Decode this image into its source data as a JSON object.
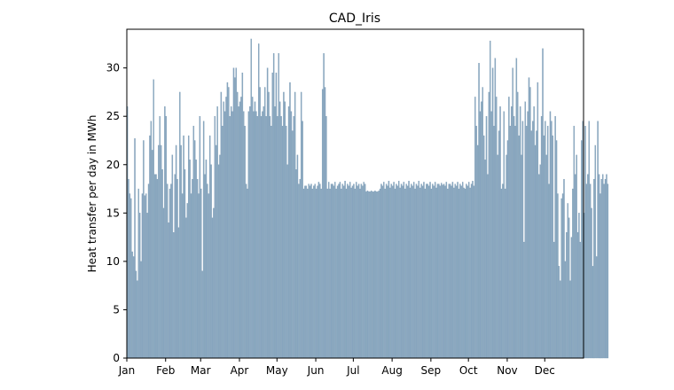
{
  "chart_data": {
    "type": "bar",
    "title": "CAD_Iris",
    "xlabel": "",
    "ylabel": "Heat transfer per day in MWh",
    "ylim": [
      0,
      34
    ],
    "yticks": [
      0,
      5,
      10,
      15,
      20,
      25,
      30
    ],
    "xlim": [
      0,
      365
    ],
    "month_ticks": [
      {
        "label": "Jan",
        "day": 0
      },
      {
        "label": "Feb",
        "day": 31
      },
      {
        "label": "Mar",
        "day": 59
      },
      {
        "label": "Apr",
        "day": 90
      },
      {
        "label": "May",
        "day": 120
      },
      {
        "label": "Jun",
        "day": 151
      },
      {
        "label": "Jul",
        "day": 181
      },
      {
        "label": "Aug",
        "day": 212
      },
      {
        "label": "Sep",
        "day": 243
      },
      {
        "label": "Oct",
        "day": 273
      },
      {
        "label": "Nov",
        "day": 304
      },
      {
        "label": "Dec",
        "day": 334
      }
    ],
    "bar_color": "#8aa8c0",
    "edge_color": "#7898b2",
    "series": [
      {
        "name": "Heat transfer per day",
        "values": [
          26.0,
          18.5,
          17.0,
          16.5,
          11.0,
          10.5,
          22.7,
          9.0,
          8.0,
          17.5,
          15.0,
          10.0,
          17.0,
          22.5,
          16.8,
          17.0,
          15.0,
          18.0,
          23.0,
          24.5,
          21.5,
          28.8,
          19.0,
          19.0,
          18.5,
          22.0,
          25.0,
          22.0,
          19.5,
          15.5,
          26.0,
          25.0,
          18.0,
          14.0,
          17.5,
          18.0,
          21.0,
          13.0,
          19.0,
          22.0,
          18.5,
          13.5,
          27.5,
          22.0,
          17.0,
          23.0,
          19.5,
          14.5,
          16.0,
          23.0,
          20.5,
          17.0,
          18.5,
          24.0,
          22.5,
          20.5,
          18.5,
          17.0,
          25.0,
          17.5,
          9.0,
          24.5,
          19.0,
          20.5,
          18.0,
          17.0,
          23.0,
          20.0,
          14.5,
          15.5,
          25.0,
          22.0,
          26.0,
          20.0,
          21.0,
          27.5,
          24.0,
          26.5,
          25.5,
          27.0,
          28.5,
          28.0,
          25.0,
          26.0,
          25.5,
          30.0,
          29.0,
          30.0,
          27.5,
          26.0,
          26.5,
          27.0,
          29.5,
          25.5,
          24.0,
          18.0,
          17.5,
          25.5,
          26.0,
          33.0,
          27.0,
          25.5,
          26.5,
          25.5,
          25.0,
          32.5,
          28.0,
          25.0,
          25.5,
          26.0,
          28.0,
          25.0,
          30.0,
          27.5,
          25.0,
          24.0,
          29.5,
          31.5,
          26.0,
          29.5,
          25.0,
          31.5,
          26.5,
          25.0,
          24.0,
          27.5,
          26.5,
          24.0,
          20.0,
          26.0,
          28.5,
          25.5,
          23.5,
          25.0,
          27.5,
          19.5,
          21.0,
          18.0,
          18.5,
          27.5,
          24.5,
          17.5,
          17.8,
          17.8,
          17.5,
          18.0,
          17.8,
          18.0,
          17.5,
          17.8,
          18.0,
          17.5,
          17.8,
          18.2,
          18.0,
          17.5,
          27.8,
          31.5,
          28.0,
          25.0,
          17.5,
          18.2,
          17.5,
          18.0,
          18.0,
          17.8,
          18.2,
          17.5,
          17.8,
          18.0,
          18.2,
          17.5,
          18.0,
          17.8,
          18.3,
          17.5,
          18.0,
          17.8,
          18.2,
          17.6,
          17.8,
          18.0,
          17.5,
          18.2,
          17.8,
          18.0,
          17.5,
          18.0,
          17.8,
          18.2,
          18.0,
          17.2,
          17.3,
          17.2,
          17.2,
          17.3,
          17.2,
          17.2,
          17.3,
          17.2,
          17.2,
          17.3,
          17.5,
          18.0,
          17.8,
          18.2,
          17.5,
          18.0,
          17.8,
          18.3,
          17.6,
          18.0,
          17.8,
          18.2,
          17.5,
          18.0,
          17.8,
          18.3,
          17.6,
          18.0,
          17.8,
          18.2,
          17.5,
          18.0,
          17.8,
          18.3,
          17.6,
          18.0,
          17.8,
          18.2,
          17.5,
          18.0,
          17.8,
          18.3,
          17.6,
          18.0,
          17.8,
          18.2,
          17.5,
          18.0,
          18.0,
          17.8,
          18.2,
          17.5,
          18.0,
          17.8,
          18.2,
          17.6,
          18.0,
          18.0,
          17.8,
          18.1,
          17.9,
          18.0,
          17.8,
          18.2,
          17.5,
          18.0,
          18.0,
          17.8,
          18.2,
          17.6,
          18.0,
          17.8,
          18.2,
          17.5,
          18.0,
          17.8,
          18.2,
          17.6,
          17.5,
          18.0,
          17.8,
          18.2,
          17.6,
          18.0,
          18.3,
          17.8,
          27.0,
          24.0,
          22.0,
          30.5,
          25.5,
          26.5,
          28.0,
          23.0,
          20.5,
          25.0,
          19.0,
          27.5,
          32.8,
          25.5,
          30.0,
          24.0,
          31.0,
          27.0,
          21.0,
          23.5,
          26.0,
          17.5,
          18.0,
          25.5,
          17.5,
          21.0,
          22.5,
          27.0,
          24.0,
          26.0,
          30.0,
          25.0,
          24.0,
          31.0,
          27.5,
          23.0,
          26.0,
          21.0,
          24.5,
          12.0,
          26.5,
          24.0,
          25.5,
          29.0,
          28.0,
          23.5,
          24.5,
          26.0,
          22.0,
          23.5,
          28.5,
          19.0,
          20.0,
          25.0,
          32.0,
          23.0,
          24.5,
          21.0,
          24.0,
          18.0,
          25.5,
          24.5,
          23.0,
          12.0,
          25.0,
          22.5,
          17.0,
          9.5,
          8.0,
          16.5,
          17.0,
          18.5,
          10.0,
          13.0,
          16.0,
          14.5,
          8.0,
          12.5,
          17.5,
          24.0,
          19.0,
          21.0,
          13.0,
          15.0,
          12.0,
          22.5,
          24.5,
          15.0,
          24.0,
          18.0,
          19.0,
          24.5,
          18.0,
          15.5,
          9.5,
          18.5,
          22.0,
          10.5,
          24.5,
          19.0,
          17.0,
          18.5,
          19.0,
          18.0,
          18.5,
          19.0,
          18.0
        ]
      }
    ]
  }
}
